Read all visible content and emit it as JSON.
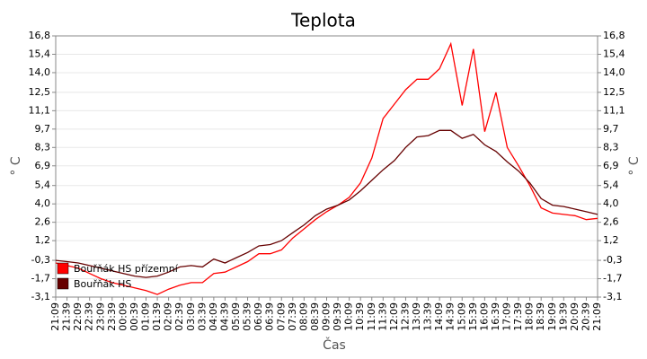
{
  "chart_data": {
    "type": "line",
    "title": "Teplota",
    "x_label": "Čas",
    "y_label": "° C",
    "y2_label": "° C",
    "categories": [
      "21:09",
      "21:39",
      "22:09",
      "22:39",
      "23:09",
      "23:39",
      "00:09",
      "00:39",
      "01:09",
      "01:39",
      "02:09",
      "02:39",
      "03:09",
      "03:39",
      "04:09",
      "04:39",
      "05:09",
      "05:39",
      "06:09",
      "06:39",
      "07:09",
      "07:39",
      "08:09",
      "08:39",
      "09:09",
      "09:39",
      "10:09",
      "10:39",
      "11:09",
      "11:39",
      "12:09",
      "12:39",
      "13:09",
      "13:39",
      "14:09",
      "14:39",
      "15:09",
      "15:39",
      "16:09",
      "16:39",
      "17:09",
      "17:39",
      "18:09",
      "18:39",
      "19:09",
      "19:39",
      "20:09",
      "20:39",
      "21:09"
    ],
    "series": [
      {
        "name": "Bouřňák HS přízemní",
        "color": "#ff0000",
        "values": [
          -0.5,
          -0.7,
          -0.9,
          -1.3,
          -1.7,
          -2.0,
          -2.2,
          -2.4,
          -2.6,
          -2.9,
          -2.5,
          -2.2,
          -2.0,
          -2.0,
          -1.3,
          -1.2,
          -0.8,
          -0.4,
          0.2,
          0.2,
          0.5,
          1.4,
          2.1,
          2.8,
          3.4,
          3.9,
          4.5,
          5.6,
          7.5,
          10.5,
          11.6,
          12.7,
          13.5,
          13.5,
          14.3,
          16.2,
          11.5,
          15.8,
          9.5,
          12.5,
          8.3,
          6.9,
          5.4,
          3.7,
          3.3,
          3.2,
          3.1,
          2.8,
          2.9
        ]
      },
      {
        "name": "Bouřňák HS",
        "color": "#660000",
        "values": [
          -0.3,
          -0.4,
          -0.5,
          -0.7,
          -0.9,
          -1.1,
          -1.3,
          -1.5,
          -1.6,
          -1.5,
          -1.2,
          -0.8,
          -0.7,
          -0.8,
          -0.2,
          -0.5,
          -0.1,
          0.3,
          0.8,
          0.9,
          1.2,
          1.8,
          2.4,
          3.1,
          3.6,
          3.9,
          4.3,
          5.0,
          5.8,
          6.6,
          7.3,
          8.3,
          9.1,
          9.2,
          9.6,
          9.6,
          9.0,
          9.3,
          8.5,
          8.0,
          7.2,
          6.5,
          5.6,
          4.4,
          3.9,
          3.8,
          3.6,
          3.4,
          3.2
        ]
      }
    ],
    "ylim": [
      -3.1,
      16.8
    ],
    "yticks": [
      {
        "value": 16.8,
        "label": "16,8"
      },
      {
        "value": 15.4,
        "label": "15,4"
      },
      {
        "value": 14.0,
        "label": "14,0"
      },
      {
        "value": 12.5,
        "label": "12,5"
      },
      {
        "value": 11.1,
        "label": "11,1"
      },
      {
        "value": 9.7,
        "label": "9,7"
      },
      {
        "value": 8.3,
        "label": "8,3"
      },
      {
        "value": 6.9,
        "label": "6,9"
      },
      {
        "value": 5.4,
        "label": "5,4"
      },
      {
        "value": 4.0,
        "label": "4,0"
      },
      {
        "value": 2.6,
        "label": "2,6"
      },
      {
        "value": 1.2,
        "label": "1,2"
      },
      {
        "value": -0.3,
        "label": "-0,3"
      },
      {
        "value": -1.7,
        "label": "-1,7"
      },
      {
        "value": -3.1,
        "label": "-3,1"
      }
    ],
    "y2lim": [
      -3.1,
      16.8
    ],
    "y2ticks": [
      {
        "value": 16.8,
        "label": "16,8"
      },
      {
        "value": 15.4,
        "label": "15,4"
      },
      {
        "value": 14.0,
        "label": "14,0"
      },
      {
        "value": 12.5,
        "label": "12,5"
      },
      {
        "value": 11.1,
        "label": "11,1"
      },
      {
        "value": 9.7,
        "label": "9,7"
      },
      {
        "value": 8.3,
        "label": "8,3"
      },
      {
        "value": 6.9,
        "label": "6,9"
      },
      {
        "value": 5.4,
        "label": "5,4"
      },
      {
        "value": 4.0,
        "label": "4,0"
      },
      {
        "value": 2.6,
        "label": "2,6"
      },
      {
        "value": 1.2,
        "label": "1,2"
      },
      {
        "value": -0.3,
        "label": "-0,3"
      },
      {
        "value": -1.7,
        "label": "-1,7"
      },
      {
        "value": -3.1,
        "label": "-3,1"
      }
    ],
    "grid": true,
    "legend": "lower-left"
  }
}
